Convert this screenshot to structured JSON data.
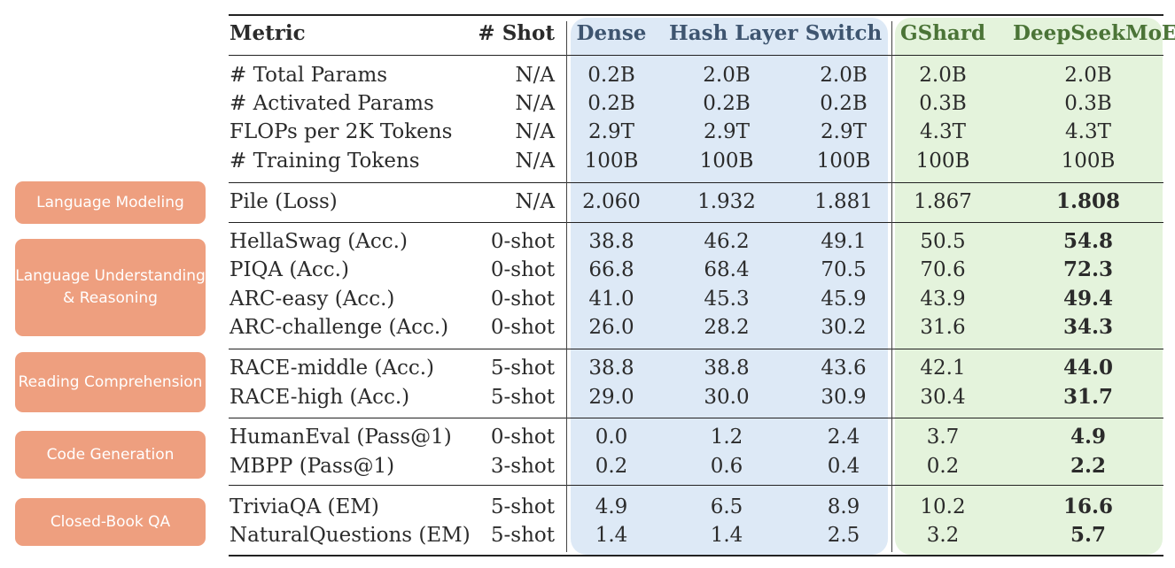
{
  "columns": {
    "metric": "Metric",
    "shot": "# Shot",
    "models": [
      "Dense",
      "Hash Layer",
      "Switch",
      "GShard",
      "DeepSeekMoE"
    ]
  },
  "categories": [
    {
      "label": "Language Modeling"
    },
    {
      "label": "Language Understanding & Reasoning"
    },
    {
      "label": "Reading Comprehension"
    },
    {
      "label": "Code Generation"
    },
    {
      "label": "Closed-Book QA"
    }
  ],
  "rows": [
    {
      "metric": "# Total Params",
      "shot": "N/A",
      "values": [
        "0.2B",
        "2.0B",
        "2.0B",
        "2.0B",
        "2.0B"
      ]
    },
    {
      "metric": "# Activated Params",
      "shot": "N/A",
      "values": [
        "0.2B",
        "0.2B",
        "0.2B",
        "0.3B",
        "0.3B"
      ]
    },
    {
      "metric": "FLOPs per 2K Tokens",
      "shot": "N/A",
      "values": [
        "2.9T",
        "2.9T",
        "2.9T",
        "4.3T",
        "4.3T"
      ]
    },
    {
      "metric": "# Training Tokens",
      "shot": "N/A",
      "values": [
        "100B",
        "100B",
        "100B",
        "100B",
        "100B"
      ]
    },
    {
      "metric": "Pile (Loss)",
      "shot": "N/A",
      "values": [
        "2.060",
        "1.932",
        "1.881",
        "1.867",
        "1.808"
      ],
      "bold_last": true
    },
    {
      "metric": "HellaSwag (Acc.)",
      "shot": "0-shot",
      "values": [
        "38.8",
        "46.2",
        "49.1",
        "50.5",
        "54.8"
      ],
      "bold_last": true
    },
    {
      "metric": "PIQA (Acc.)",
      "shot": "0-shot",
      "values": [
        "66.8",
        "68.4",
        "70.5",
        "70.6",
        "72.3"
      ],
      "bold_last": true
    },
    {
      "metric": "ARC-easy (Acc.)",
      "shot": "0-shot",
      "values": [
        "41.0",
        "45.3",
        "45.9",
        "43.9",
        "49.4"
      ],
      "bold_last": true
    },
    {
      "metric": "ARC-challenge (Acc.)",
      "shot": "0-shot",
      "values": [
        "26.0",
        "28.2",
        "30.2",
        "31.6",
        "34.3"
      ],
      "bold_last": true
    },
    {
      "metric": "RACE-middle (Acc.)",
      "shot": "5-shot",
      "values": [
        "38.8",
        "38.8",
        "43.6",
        "42.1",
        "44.0"
      ],
      "bold_last": true
    },
    {
      "metric": "RACE-high (Acc.)",
      "shot": "5-shot",
      "values": [
        "29.0",
        "30.0",
        "30.9",
        "30.4",
        "31.7"
      ],
      "bold_last": true
    },
    {
      "metric": "HumanEval (Pass@1)",
      "shot": "0-shot",
      "values": [
        "0.0",
        "1.2",
        "2.4",
        "3.7",
        "4.9"
      ],
      "bold_last": true
    },
    {
      "metric": "MBPP (Pass@1)",
      "shot": "3-shot",
      "values": [
        "0.2",
        "0.6",
        "0.4",
        "0.2",
        "2.2"
      ],
      "bold_last": true
    },
    {
      "metric": "TriviaQA (EM)",
      "shot": "5-shot",
      "values": [
        "4.9",
        "6.5",
        "8.9",
        "10.2",
        "16.6"
      ],
      "bold_last": true
    },
    {
      "metric": "NaturalQuestions (EM)",
      "shot": "5-shot",
      "values": [
        "1.4",
        "1.4",
        "2.5",
        "3.2",
        "5.7"
      ],
      "bold_last": true
    }
  ],
  "colors": {
    "dense_group_bg": "#dde9f6",
    "moe_group_bg": "#e4f3dc",
    "category_bg": "#ee9f7f"
  }
}
